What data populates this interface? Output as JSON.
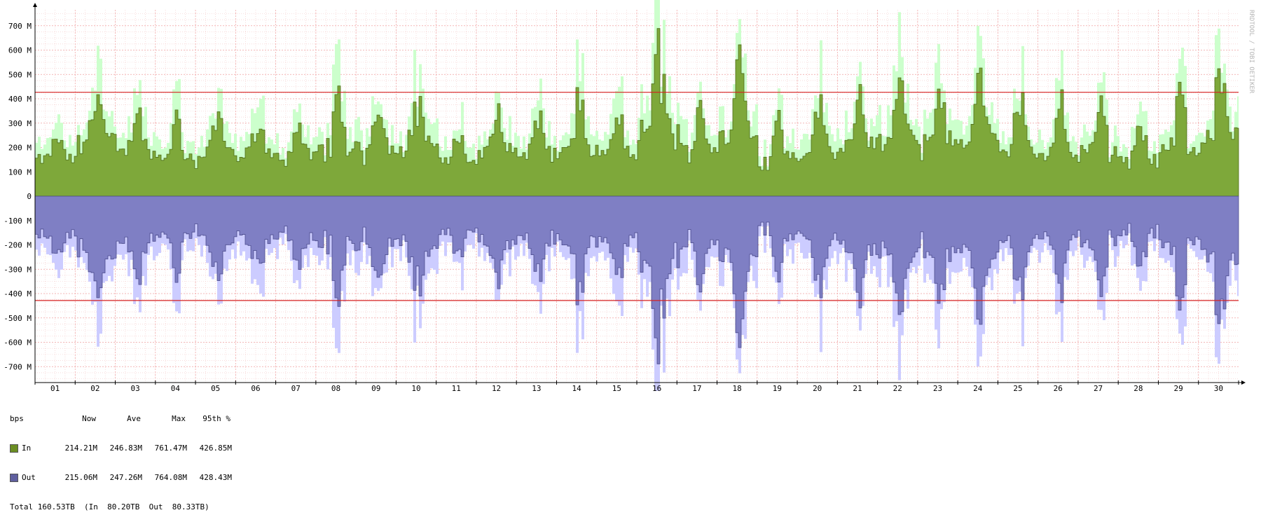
{
  "watermark": "RRDTOOL / TOBI OETIKER",
  "chart_data": {
    "type": "area",
    "xlabel": "",
    "ylabel": "",
    "ylim": [
      -760,
      760
    ],
    "y_unit": "M",
    "y_ticks": [
      700,
      600,
      500,
      400,
      300,
      200,
      100,
      0,
      -100,
      -200,
      -300,
      -400,
      -500,
      -600,
      -700
    ],
    "y_tick_labels": [
      "700 M",
      "600 M",
      "500 M",
      "400 M",
      "300 M",
      "200 M",
      "100 M",
      "0",
      "-100 M",
      "-200 M",
      "-300 M",
      "-400 M",
      "-500 M",
      "-600 M",
      "-700 M"
    ],
    "x_tick_labels": [
      "01",
      "02",
      "03",
      "04",
      "05",
      "06",
      "07",
      "08",
      "09",
      "10",
      "11",
      "12",
      "13",
      "14",
      "15",
      "16",
      "17",
      "18",
      "19",
      "20",
      "21",
      "22",
      "23",
      "24",
      "25",
      "26",
      "27",
      "28",
      "29",
      "30"
    ],
    "xlim": [
      0.5,
      30.5
    ],
    "percentile_lines": [
      426.85,
      -428.43
    ],
    "series": [
      {
        "name": "In",
        "color": "#7ea83a",
        "max_color": "#ccffcc",
        "daily_average_M": [
          190,
          330,
          240,
          210,
          230,
          220,
          210,
          280,
          270,
          310,
          170,
          250,
          230,
          260,
          240,
          420,
          270,
          350,
          210,
          240,
          300,
          330,
          320,
          330,
          230,
          200,
          260,
          190,
          270,
          380
        ],
        "daily_peak_M": [
          240,
          430,
          360,
          330,
          350,
          320,
          300,
          400,
          380,
          410,
          260,
          350,
          340,
          420,
          330,
          620,
          400,
          590,
          330,
          380,
          440,
          470,
          430,
          490,
          460,
          420,
          380,
          320,
          430,
          560
        ]
      },
      {
        "name": "Out",
        "color": "#7f7fc4",
        "max_color": "#ccccff",
        "daily_average_M": [
          -190,
          -330,
          -240,
          -210,
          -230,
          -220,
          -210,
          -280,
          -270,
          -310,
          -170,
          -250,
          -230,
          -260,
          -240,
          -420,
          -270,
          -350,
          -210,
          -240,
          -300,
          -330,
          -320,
          -330,
          -230,
          -200,
          -260,
          -190,
          -270,
          -380
        ],
        "daily_peak_M": [
          -240,
          -430,
          -360,
          -330,
          -350,
          -320,
          -300,
          -400,
          -380,
          -410,
          -260,
          -350,
          -340,
          -420,
          -330,
          -620,
          -400,
          -590,
          -330,
          -380,
          -440,
          -470,
          -430,
          -490,
          -460,
          -420,
          -380,
          -320,
          -430,
          -560
        ]
      }
    ]
  },
  "legend": {
    "header": {
      "unit": "bps",
      "now": "Now",
      "ave": "Ave",
      "max": "Max",
      "p95": "95th %"
    },
    "rows": [
      {
        "name": "In",
        "color": "#6b8e23",
        "now": "214.21M",
        "ave": "246.83M",
        "max": "761.47M",
        "p95": "426.85M"
      },
      {
        "name": "Out",
        "color": "#5f5f9e",
        "now": "215.06M",
        "ave": "247.26M",
        "max": "764.08M",
        "p95": "428.43M"
      }
    ],
    "total": "Total 160.53TB  (In  80.20TB  Out  80.33TB)"
  }
}
